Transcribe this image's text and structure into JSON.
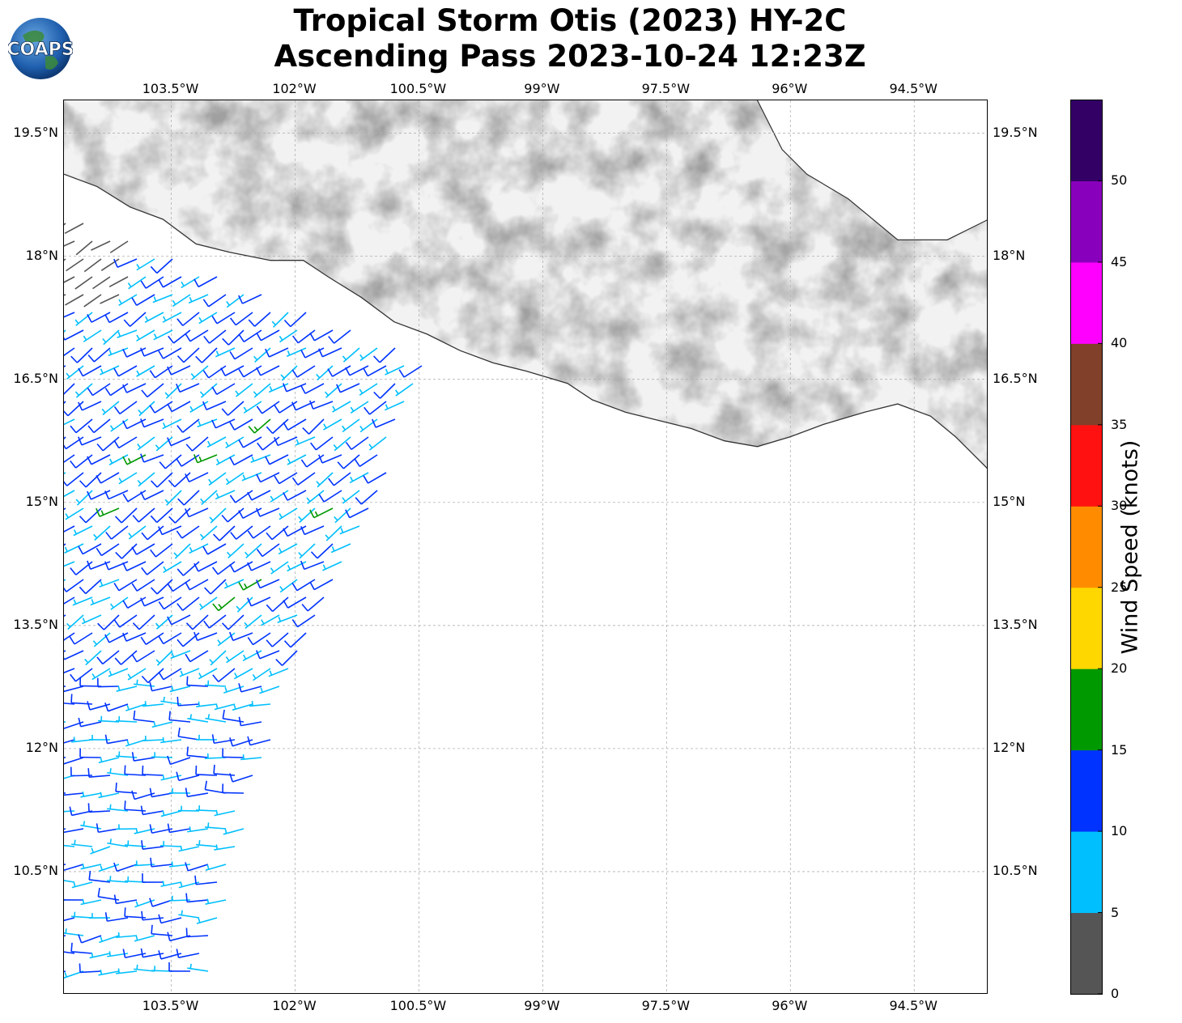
{
  "title": {
    "line1": "Tropical Storm Otis (2023) HY-2C",
    "line2": "Ascending Pass 2023-10-24 12:23Z"
  },
  "logo": {
    "text": "COAPS"
  },
  "map": {
    "lon_range": [
      -104.8,
      -93.6
    ],
    "lat_range": [
      9.0,
      19.9
    ],
    "lon_ticks": [
      {
        "value": -103.5,
        "label": "103.5°W"
      },
      {
        "value": -102.0,
        "label": "102°W"
      },
      {
        "value": -100.5,
        "label": "100.5°W"
      },
      {
        "value": -99.0,
        "label": "99°W"
      },
      {
        "value": -97.5,
        "label": "97.5°W"
      },
      {
        "value": -96.0,
        "label": "96°W"
      },
      {
        "value": -94.5,
        "label": "94.5°W"
      }
    ],
    "lat_ticks": [
      {
        "value": 19.5,
        "label": "19.5°N"
      },
      {
        "value": 18.0,
        "label": "18°N"
      },
      {
        "value": 16.5,
        "label": "16.5°N"
      },
      {
        "value": 15.0,
        "label": "15°N"
      },
      {
        "value": 13.5,
        "label": "13.5°N"
      },
      {
        "value": 12.0,
        "label": "12°N"
      },
      {
        "value": 10.5,
        "label": "10.5°N"
      }
    ],
    "grid": true,
    "basemap": "grayscale terrain elevation over land, white ocean"
  },
  "colorbar": {
    "title": "Wind Speed (knots)",
    "ticks": [
      "0",
      "5",
      "10",
      "15",
      "20",
      "25",
      "30",
      "35",
      "40",
      "45",
      "50"
    ],
    "bins": [
      {
        "min": 0,
        "max": 5,
        "color": "#555555"
      },
      {
        "min": 5,
        "max": 10,
        "color": "#00bfff"
      },
      {
        "min": 10,
        "max": 15,
        "color": "#0033ff"
      },
      {
        "min": 15,
        "max": 20,
        "color": "#009900"
      },
      {
        "min": 20,
        "max": 25,
        "color": "#ffd700"
      },
      {
        "min": 25,
        "max": 30,
        "color": "#ff8c00"
      },
      {
        "min": 30,
        "max": 35,
        "color": "#ff1111"
      },
      {
        "min": 35,
        "max": 40,
        "color": "#80402a"
      },
      {
        "min": 40,
        "max": 45,
        "color": "#ff00ff"
      },
      {
        "min": 45,
        "max": 50,
        "color": "#8800bb"
      },
      {
        "min": 50,
        "max": 55,
        "color": "#330066"
      }
    ]
  },
  "swath": {
    "description": "HY-2C scatterometer wind barbs over ocean west of ~100.3°W",
    "corners_lonlat": [
      [
        -104.8,
        18.5
      ],
      [
        -100.3,
        16.7
      ],
      [
        -102.2,
        12.4
      ],
      [
        -103.1,
        9.1
      ],
      [
        -104.8,
        9.1
      ]
    ],
    "dominant_speed_kt": "5-15",
    "wind_from": "southwest to west"
  }
}
